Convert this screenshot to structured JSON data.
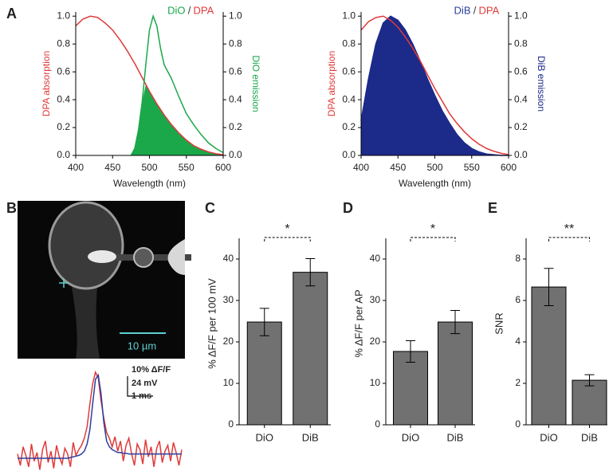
{
  "chart_data": [
    {
      "type": "line",
      "panel": "A",
      "title_parts": [
        {
          "text": "DiO",
          "color": "#1aa84a"
        },
        {
          "text": "/",
          "color": "#333333"
        },
        {
          "text": "DPA",
          "color": "#e03a3a"
        }
      ],
      "x_label": "Wavelength (nm)",
      "y_label": "DPA absorption",
      "y2_label": "DiO emission",
      "y_label_color": "#e03a3a",
      "y2_label_color": "#1aa84a",
      "xlim": [
        400,
        600
      ],
      "xticks": [
        400,
        450,
        500,
        550,
        600
      ],
      "ylim": [
        0,
        1.03
      ],
      "yticks": [
        {
          "value": 0,
          "label": "0.0"
        },
        {
          "value": 0.2,
          "label": "0.2"
        },
        {
          "value": 0.4,
          "label": "0.4"
        },
        {
          "value": 0.6,
          "label": "0.6"
        },
        {
          "value": 0.8,
          "label": "0.8"
        },
        {
          "value": 1,
          "label": "1.0"
        }
      ],
      "y2lim": [
        0,
        1.03
      ],
      "y2ticks": [
        {
          "value": 0,
          "label": "0.0"
        },
        {
          "value": 0.2,
          "label": "0.2"
        },
        {
          "value": 0.4,
          "label": "0.4"
        },
        {
          "value": 0.6,
          "label": "0.6"
        },
        {
          "value": 0.8,
          "label": "0.8"
        },
        {
          "value": 1,
          "label": "1.0"
        }
      ],
      "series": [
        {
          "color": "#e03a3a",
          "x": [
            400,
            410,
            420,
            430,
            440,
            450,
            460,
            470,
            480,
            490,
            500,
            510,
            520,
            530,
            540,
            550,
            560,
            570,
            580,
            590,
            600
          ],
          "values": [
            0.93,
            0.98,
            1.0,
            0.99,
            0.95,
            0.9,
            0.83,
            0.75,
            0.66,
            0.56,
            0.46,
            0.37,
            0.29,
            0.22,
            0.16,
            0.11,
            0.07,
            0.045,
            0.025,
            0.012,
            0.005
          ]
        },
        {
          "color": "#1aa84a",
          "axis": "y2",
          "fill": "overlap",
          "x": [
            475,
            480,
            485,
            490,
            495,
            500,
            505,
            510,
            515,
            520,
            525,
            530,
            540,
            550,
            560,
            570,
            580,
            590,
            600
          ],
          "values": [
            0,
            0.05,
            0.18,
            0.38,
            0.65,
            0.9,
            1.0,
            0.93,
            0.77,
            0.65,
            0.6,
            0.55,
            0.42,
            0.3,
            0.22,
            0.15,
            0.09,
            0.05,
            0.02
          ]
        }
      ]
    },
    {
      "type": "line",
      "title_parts": [
        {
          "text": "DiB",
          "color": "#2a3f9e"
        },
        {
          "text": "/",
          "color": "#333333"
        },
        {
          "text": "DPA",
          "color": "#e03a3a"
        }
      ],
      "x_label": "Wavelength (nm)",
      "y_label": "DPA absorption",
      "y2_label": "DiB emission",
      "y_label_color": "#e03a3a",
      "y2_label_color": "#1c2a8a",
      "xlim": [
        400,
        600
      ],
      "xticks": [
        400,
        450,
        500,
        550,
        600
      ],
      "ylim": [
        0,
        1.03
      ],
      "yticks": [
        {
          "value": 0,
          "label": "0.0"
        },
        {
          "value": 0.2,
          "label": "0.2"
        },
        {
          "value": 0.4,
          "label": "0.4"
        },
        {
          "value": 0.6,
          "label": "0.6"
        },
        {
          "value": 0.8,
          "label": "0.8"
        },
        {
          "value": 1,
          "label": "1.0"
        }
      ],
      "y2lim": [
        0,
        1.03
      ],
      "y2ticks": [
        {
          "value": 0,
          "label": "0.0"
        },
        {
          "value": 0.2,
          "label": "0.2"
        },
        {
          "value": 0.4,
          "label": "0.4"
        },
        {
          "value": 0.6,
          "label": "0.6"
        },
        {
          "value": 0.8,
          "label": "0.8"
        },
        {
          "value": 1,
          "label": "1.0"
        }
      ],
      "series": [
        {
          "color": "#1c2a8a",
          "axis": "y2",
          "fill": "under",
          "x": [
            400,
            410,
            420,
            430,
            440,
            450,
            460,
            470,
            480,
            490,
            500,
            510,
            520,
            530,
            540,
            550,
            560,
            570,
            580,
            590,
            600
          ],
          "values": [
            0.25,
            0.55,
            0.8,
            0.95,
            1.0,
            0.97,
            0.9,
            0.8,
            0.68,
            0.55,
            0.43,
            0.32,
            0.23,
            0.15,
            0.09,
            0.05,
            0.025,
            0.01,
            0.005,
            0,
            0
          ]
        },
        {
          "color": "#e03a3a",
          "x": [
            400,
            410,
            420,
            430,
            440,
            450,
            460,
            470,
            480,
            490,
            500,
            510,
            520,
            530,
            540,
            550,
            560,
            570,
            580,
            590,
            600
          ],
          "values": [
            0.9,
            0.96,
            0.99,
            1.0,
            0.97,
            0.92,
            0.85,
            0.77,
            0.68,
            0.58,
            0.48,
            0.39,
            0.3,
            0.23,
            0.17,
            0.12,
            0.08,
            0.05,
            0.03,
            0.015,
            0.006
          ]
        }
      ]
    },
    {
      "type": "trace",
      "panel": "B",
      "scale_bar_label": "10 µm",
      "trace_labels": [
        "10% ΔF/F",
        "24 mV",
        "1 ms"
      ],
      "series": [
        {
          "color": "#e03a3a",
          "values": [
            3,
            -5,
            8,
            2,
            -6,
            10,
            -2,
            4,
            -8,
            6,
            12,
            -3,
            5,
            -7,
            9,
            1,
            -4,
            7,
            3,
            -6,
            11,
            2,
            6,
            9,
            14,
            22,
            38,
            52,
            60,
            56,
            40,
            28,
            18,
            14,
            8,
            15,
            5,
            12,
            -2,
            9,
            14,
            3,
            -5,
            10,
            6,
            -4,
            13,
            1,
            8,
            -6,
            7,
            12,
            -3,
            5,
            9,
            -2,
            11,
            4,
            -5,
            6
          ]
        },
        {
          "color": "#2a3f9e",
          "values": [
            0,
            0,
            0,
            0,
            0,
            0,
            0,
            0,
            0,
            0,
            0,
            0,
            0,
            0,
            0,
            0,
            0,
            0,
            0,
            0.5,
            1,
            1.5,
            2,
            3,
            5,
            10,
            20,
            38,
            55,
            58,
            45,
            25,
            12,
            8,
            6,
            5,
            4,
            4,
            3.5,
            3.5,
            3,
            3,
            3,
            3,
            3,
            3,
            3,
            3,
            3,
            3,
            3,
            3,
            3,
            3,
            3,
            3,
            3,
            3,
            3,
            3
          ]
        }
      ]
    },
    {
      "type": "bar",
      "panel": "C",
      "y_label": "% ΔF/F per 100 mV",
      "color": "#717171",
      "categories": [
        "DiO",
        "DiB"
      ],
      "values": [
        24.8,
        36.8
      ],
      "errors": [
        3.3,
        3.3
      ],
      "ylim": [
        0,
        45
      ],
      "yticks": [
        0,
        10,
        20,
        30,
        40
      ],
      "significance": "*"
    },
    {
      "type": "bar",
      "panel": "D",
      "y_label": "% ΔF/F per AP",
      "color": "#717171",
      "categories": [
        "DiO",
        "DiB"
      ],
      "values": [
        17.7,
        24.8
      ],
      "errors": [
        2.6,
        2.8
      ],
      "ylim": [
        0,
        45
      ],
      "yticks": [
        0,
        10,
        20,
        30,
        40
      ],
      "significance": "*"
    },
    {
      "type": "bar",
      "panel": "E",
      "y_label": "SNR",
      "color": "#717171",
      "categories": [
        "DiO",
        "DiB"
      ],
      "values": [
        6.65,
        2.15
      ],
      "errors": [
        0.9,
        0.27
      ],
      "ylim": [
        0,
        9
      ],
      "yticks": [
        0,
        2,
        4,
        6,
        8
      ],
      "significance": "**"
    }
  ]
}
